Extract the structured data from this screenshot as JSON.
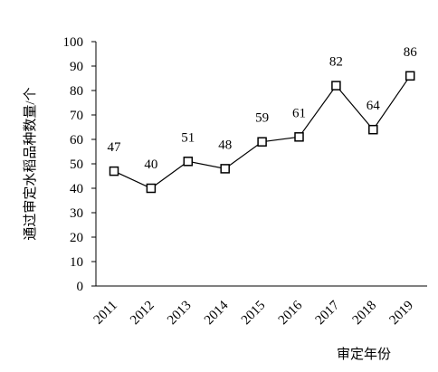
{
  "chart_data": {
    "type": "line",
    "title": "",
    "xlabel": "审定年份",
    "ylabel": "通过审定水稻品种数量/个",
    "categories": [
      "2011",
      "2012",
      "2013",
      "2014",
      "2015",
      "2016",
      "2017",
      "2018",
      "2019"
    ],
    "series": [
      {
        "values": [
          47,
          40,
          51,
          48,
          59,
          61,
          82,
          64,
          86
        ],
        "marker": "square",
        "color": "#000000"
      }
    ],
    "ylim": [
      0,
      100
    ],
    "yticks": [
      "0",
      "10",
      "20",
      "30",
      "40",
      "50",
      "60",
      "70",
      "80",
      "90",
      "100"
    ],
    "data_labels": [
      "47",
      "40",
      "51",
      "48",
      "59",
      "61",
      "82",
      "64",
      "86"
    ],
    "grid": false,
    "legend": "none"
  }
}
